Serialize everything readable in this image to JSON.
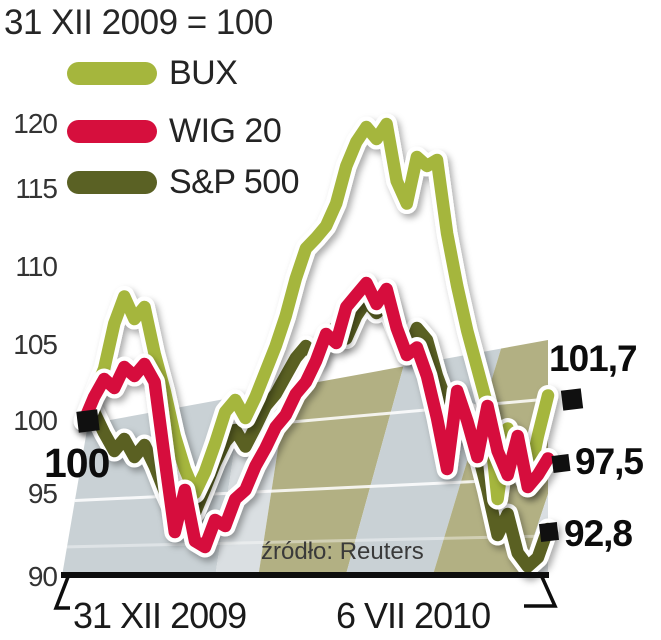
{
  "title": "31 XII 2009 = 100",
  "legend": {
    "items": [
      {
        "label": "BUX",
        "color": "#a5b63d"
      },
      {
        "label": "WIG 20",
        "color": "#d60f3d"
      },
      {
        "label": "S&P 500",
        "color": "#5a6124"
      }
    ]
  },
  "y_axis": {
    "ticks": [
      "120",
      "115",
      "110",
      "105",
      "100",
      "95",
      "90"
    ]
  },
  "x_axis": {
    "start_label": "31 XII 2009",
    "end_label": "6 VII 2010"
  },
  "annotations": {
    "start_value": "100",
    "end_values": [
      {
        "series": "BUX",
        "text": "101,7"
      },
      {
        "series": "WIG 20",
        "text": "97,5"
      },
      {
        "series": "S&P 500",
        "text": "92,8"
      }
    ]
  },
  "source": "źródło: Reuters",
  "chart_data": {
    "type": "line",
    "title": "31 XII 2009 = 100",
    "x_range": [
      "31 XII 2009",
      "6 VII 2010"
    ],
    "ylim": [
      90,
      120
    ],
    "y_ticks": [
      90,
      95,
      100,
      105,
      110,
      115,
      120
    ],
    "legend_position": "top-left",
    "grid": "perspective-floor",
    "layer_order": [
      "S&P 500",
      "BUX",
      "WIG 20"
    ],
    "end_values": {
      "BUX": 101.7,
      "WIG 20": 97.5,
      "S&P 500": 92.8
    },
    "series": [
      {
        "name": "BUX",
        "color": "#a5b63d",
        "values": [
          100,
          101.8,
          103.5,
          106.5,
          108.3,
          106.8,
          107.6,
          104.5,
          102.0,
          99.0,
          96.8,
          95.2,
          96.6,
          98.5,
          100.6,
          101.4,
          100.2,
          101.6,
          103.3,
          105.0,
          107.0,
          109.5,
          111.5,
          112.2,
          113.0,
          114.5,
          117.0,
          118.6,
          119.6,
          118.8,
          119.8,
          116.0,
          114.5,
          117.6,
          117.0,
          117.4,
          112.5,
          109.0,
          106.0,
          103.5,
          101.0,
          94.8,
          99.5,
          97.0,
          95.8,
          99.0,
          101.7
        ]
      },
      {
        "name": "WIG 20",
        "color": "#d60f3d",
        "values": [
          100,
          101.6,
          102.8,
          102.2,
          103.6,
          103.0,
          103.8,
          102.6,
          97.5,
          92.6,
          95.4,
          92.0,
          91.6,
          93.4,
          93.0,
          94.8,
          95.4,
          97.0,
          98.2,
          99.6,
          100.4,
          101.8,
          102.6,
          104.0,
          105.8,
          105.2,
          107.6,
          108.4,
          109.2,
          107.8,
          108.8,
          106.2,
          104.4,
          104.9,
          103.0,
          100.2,
          96.8,
          102.0,
          100.0,
          97.6,
          101.0,
          98.0,
          96.4,
          99.0,
          95.6,
          96.4,
          97.5
        ]
      },
      {
        "name": "S&P 500",
        "color": "#5a6124",
        "values": [
          100,
          100.6,
          99.2,
          98.0,
          98.8,
          97.6,
          98.4,
          97.0,
          95.3,
          93.8,
          94.8,
          93.9,
          95.5,
          97.2,
          98.6,
          99.4,
          98.3,
          99.6,
          101.0,
          101.8,
          103.0,
          104.2,
          105.0,
          104.3,
          105.6,
          106.3,
          105.5,
          107.0,
          108.0,
          107.2,
          107.8,
          106.0,
          104.5,
          106.2,
          105.4,
          103.0,
          101.2,
          99.4,
          100.6,
          98.0,
          95.4,
          92.4,
          93.8,
          91.2,
          90.3,
          90.9,
          92.8
        ]
      }
    ]
  }
}
